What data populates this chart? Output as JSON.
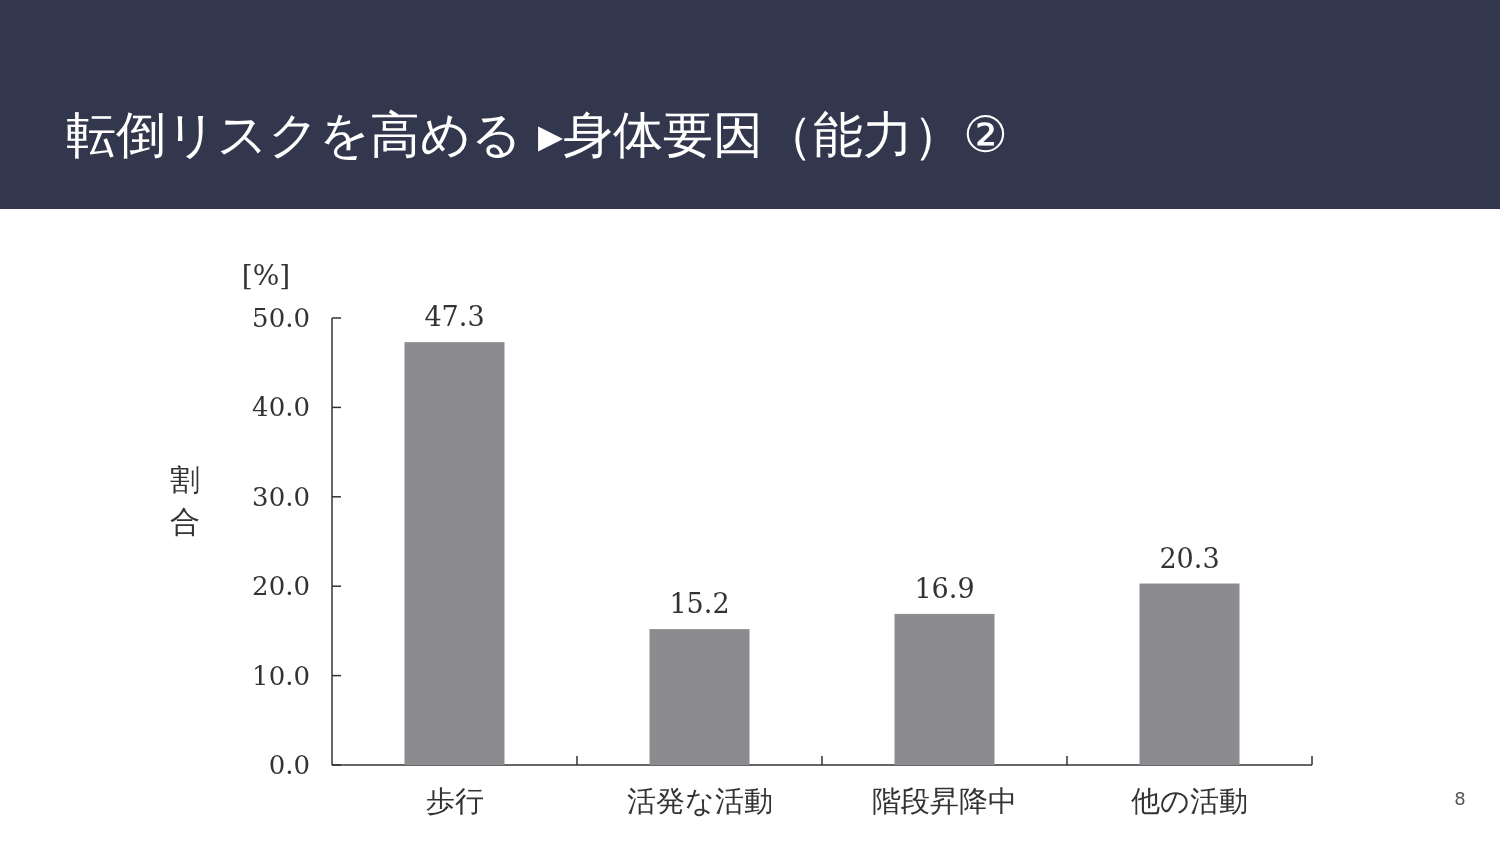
{
  "chart_data": {
    "type": "bar",
    "title": "転倒リスクを高める ▸身体要因（能力）②",
    "ylabel": "割合",
    "annotations": [
      "[%]",
      "8"
    ],
    "categories": [
      "歩行",
      "活発な活動",
      "階段昇降中",
      "他の活動"
    ],
    "values": [
      47.3,
      15.2,
      16.9,
      20.3
    ],
    "color": "#8c8c90",
    "ylim": [
      0,
      50
    ],
    "yticks": [
      {
        "value": 0,
        "label": "0.0"
      },
      {
        "value": 10,
        "label": "10.0"
      },
      {
        "value": 20,
        "label": "20.0"
      },
      {
        "value": 30,
        "label": "30.0"
      },
      {
        "value": 40,
        "label": "40.0"
      },
      {
        "value": 50,
        "label": "50.0"
      }
    ],
    "data_labels": true,
    "grid": false
  }
}
